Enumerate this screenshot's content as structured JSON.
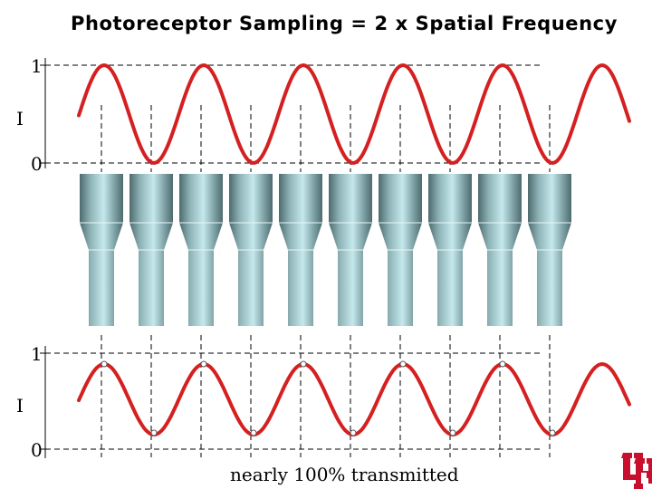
{
  "title": "Photoreceptor Sampling = 2 x Spatial Frequency",
  "top_plot": {
    "axis_label": "I",
    "tick_max": "1",
    "tick_min": "0"
  },
  "bottom_plot": {
    "axis_label": "I",
    "tick_max": "1",
    "tick_min": "0"
  },
  "caption": "nearly 100% transmitted",
  "photoreceptor_count": 10,
  "wave_cycles_shown": 5.5,
  "samples_per_cycle": 2,
  "colors": {
    "wave": "#d42020",
    "receptor_light": "#bfe6e9",
    "receptor_dark": "#4d6b6e",
    "logo": "#c8102e"
  },
  "logo": "UH",
  "icons": [
    "uh-logo-icon",
    "sample-point-marker"
  ]
}
